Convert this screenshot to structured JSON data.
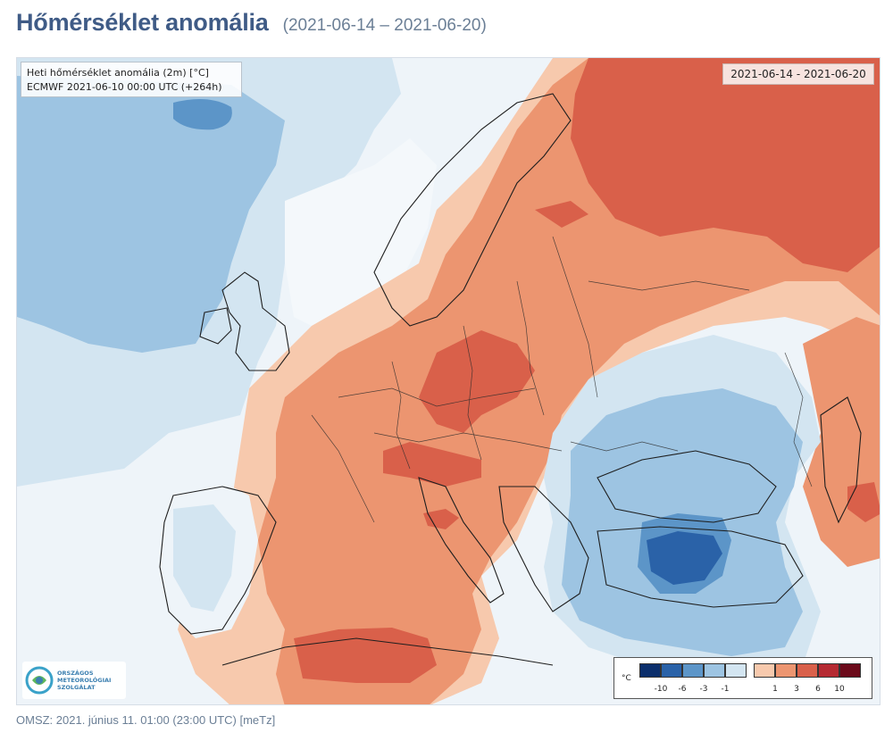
{
  "header": {
    "title": "Hőmérséklet anomália",
    "date_range": "(2021-06-14 – 2021-06-20)"
  },
  "map": {
    "info_line1": "Heti hőmérséklet anomália (2m) [°C]",
    "info_line2": "ECMWF 2021-06-10 00:00 UTC (+264h)",
    "date_badge": "2021-06-14 - 2021-06-20",
    "logo": {
      "line1": "ORSZÁGOS",
      "line2": "METEOROLÓGIAI",
      "line3": "SZOLGÁLAT"
    },
    "legend": {
      "unit": "°C",
      "cold_colors": [
        "#0b2e6b",
        "#2a62a8",
        "#5c95c8",
        "#9dc4e2",
        "#d3e5f1"
      ],
      "warm_colors": [
        "#f7c9ad",
        "#ec9570",
        "#d9604a",
        "#b52a32",
        "#6b0a1a"
      ],
      "cold_ticks": [
        "-10",
        "-6",
        "-3",
        "-1"
      ],
      "warm_ticks": [
        "1",
        "3",
        "6",
        "10"
      ]
    }
  },
  "footer": {
    "text": "OMSZ: 2021. június 11. 01:00 (23:00  UTC)  [meTz]"
  }
}
